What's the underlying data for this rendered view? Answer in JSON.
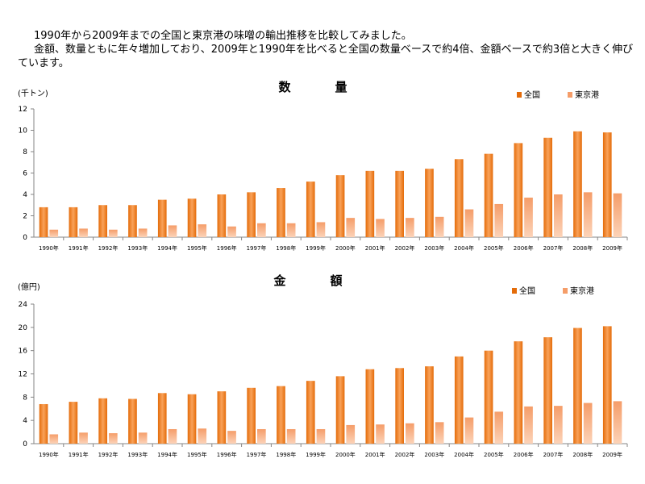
{
  "intro": {
    "line1": "1990年から2009年までの全国と東京港の味噌の輸出推移を比較してみました。",
    "line2": "金額、数量ともに年々増加しており、2009年と1990年を比べると全国の数量ベースで約4倍、金額ベースで約3倍と大きく伸びています。"
  },
  "colors": {
    "national": "#e46c0a",
    "national_light": "#f9a25a",
    "tokyo": "#f59d69",
    "tokyo_light": "#fcd3b8",
    "axis": "#868686"
  },
  "chart_data": [
    {
      "type": "bar",
      "title": "数　量",
      "ylabel": "(千トン)",
      "xlabel": "",
      "ylim": [
        0,
        12
      ],
      "yticks": [
        0,
        2,
        4,
        6,
        8,
        10,
        12
      ],
      "legend_position": "top-right",
      "grid": false,
      "categories": [
        "1990年",
        "1991年",
        "1992年",
        "1993年",
        "1994年",
        "1995年",
        "1996年",
        "1997年",
        "1998年",
        "1999年",
        "2000年",
        "2001年",
        "2002年",
        "2003年",
        "2004年",
        "2005年",
        "2006年",
        "2007年",
        "2008年",
        "2009年"
      ],
      "series": [
        {
          "name": "全国",
          "values": [
            2.8,
            2.8,
            3.0,
            3.0,
            3.5,
            3.6,
            4.0,
            4.2,
            4.6,
            5.2,
            5.8,
            6.2,
            6.2,
            6.4,
            7.3,
            7.8,
            8.8,
            9.3,
            9.9,
            9.8
          ]
        },
        {
          "name": "東京港",
          "values": [
            0.7,
            0.8,
            0.7,
            0.8,
            1.1,
            1.2,
            1.0,
            1.3,
            1.3,
            1.4,
            1.8,
            1.7,
            1.8,
            1.9,
            2.6,
            3.1,
            3.7,
            4.0,
            4.2,
            4.1
          ]
        }
      ]
    },
    {
      "type": "bar",
      "title": "金　額",
      "ylabel": "(億円)",
      "xlabel": "",
      "ylim": [
        0,
        24
      ],
      "yticks": [
        0,
        4,
        8,
        12,
        16,
        20,
        24
      ],
      "legend_position": "top-right",
      "grid": false,
      "categories": [
        "1990年",
        "1991年",
        "1992年",
        "1993年",
        "1994年",
        "1995年",
        "1996年",
        "1997年",
        "1998年",
        "1999年",
        "2000年",
        "2001年",
        "2002年",
        "2003年",
        "2004年",
        "2005年",
        "2006年",
        "2007年",
        "2008年",
        "2009年"
      ],
      "series": [
        {
          "name": "全国",
          "values": [
            6.8,
            7.2,
            7.8,
            7.7,
            8.7,
            8.5,
            9.0,
            9.6,
            9.9,
            10.8,
            11.6,
            12.8,
            13.0,
            13.3,
            15.0,
            16.0,
            17.6,
            18.3,
            19.9,
            20.2
          ]
        },
        {
          "name": "東京港",
          "values": [
            1.6,
            1.9,
            1.8,
            1.9,
            2.5,
            2.6,
            2.2,
            2.5,
            2.5,
            2.5,
            3.2,
            3.3,
            3.5,
            3.7,
            4.5,
            5.5,
            6.4,
            6.5,
            7.0,
            7.3
          ]
        }
      ]
    }
  ]
}
